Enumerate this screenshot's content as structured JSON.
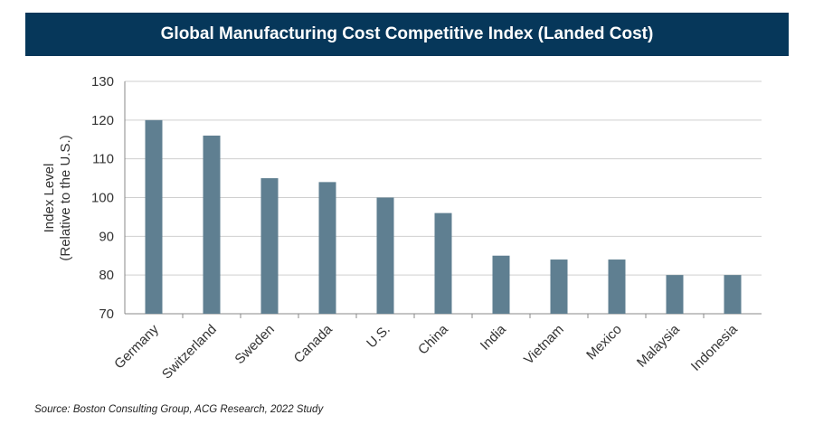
{
  "chart_data": {
    "type": "bar",
    "title": "Global Manufacturing Cost Competitive Index (Landed Cost)",
    "ylabel_line1": "Index Level",
    "ylabel_line2": "(Relative to the U.S.)",
    "xlabel": "",
    "categories": [
      "Germany",
      "Switzerland",
      "Sweden",
      "Canada",
      "U.S.",
      "China",
      "India",
      "Vietnam",
      "Mexico",
      "Malaysia",
      "Indonesia"
    ],
    "values": [
      120,
      116,
      105,
      104,
      100,
      96,
      85,
      84,
      84,
      80,
      80
    ],
    "ylim": [
      70,
      130
    ],
    "yticks": [
      70,
      80,
      90,
      100,
      110,
      120,
      130
    ],
    "grid": true,
    "bar_color": "#5f7f91"
  },
  "source_note": "Source: Boston Consulting Group, ACG Research, 2022 Study"
}
